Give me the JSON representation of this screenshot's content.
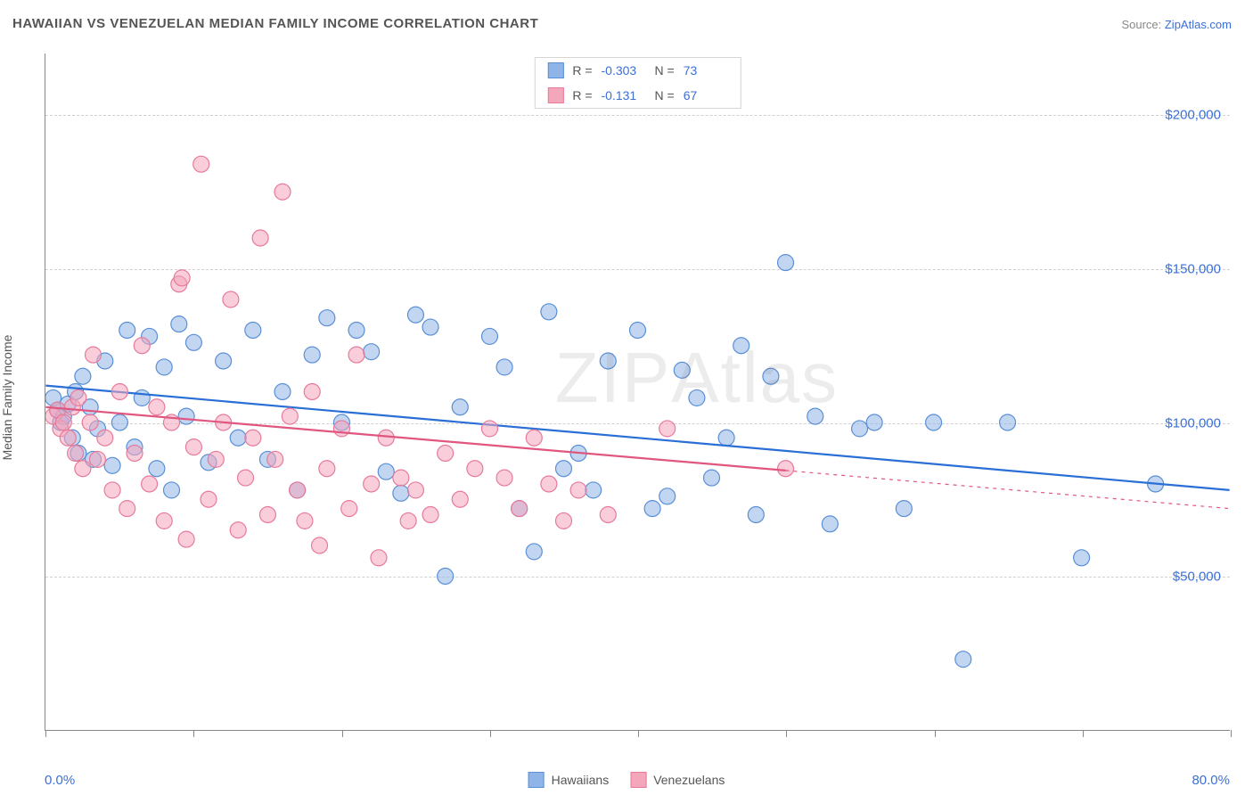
{
  "title": "HAWAIIAN VS VENEZUELAN MEDIAN FAMILY INCOME CORRELATION CHART",
  "source_prefix": "Source: ",
  "source_name": "ZipAtlas.com",
  "watermark_bold": "ZIP",
  "watermark_thin": "Atlas",
  "y_axis_label": "Median Family Income",
  "chart": {
    "type": "scatter",
    "background_color": "#ffffff",
    "grid_color": "#d0d0d0",
    "axis_color": "#888888",
    "xlim": [
      0,
      80
    ],
    "ylim": [
      0,
      220000
    ],
    "y_gridlines": [
      50000,
      100000,
      150000,
      200000
    ],
    "y_tick_labels": [
      "$50,000",
      "$100,000",
      "$150,000",
      "$200,000"
    ],
    "x_ticks": [
      0,
      10,
      20,
      30,
      40,
      50,
      60,
      70,
      80
    ],
    "x_min_label": "0.0%",
    "x_max_label": "80.0%",
    "tick_label_color": "#3b6fd6",
    "axis_label_color": "#555555",
    "title_fontsize": 15,
    "label_fontsize": 14,
    "marker_radius": 9,
    "marker_opacity": 0.55,
    "line_width": 2.2
  },
  "series": [
    {
      "name": "Hawaiians",
      "color_fill": "#8fb5e8",
      "color_stroke": "#5a8fd6",
      "line_color": "#2a6fd6",
      "R": "-0.303",
      "N": "73",
      "trend": {
        "x1": 0,
        "y1": 112000,
        "x2": 80,
        "y2": 78000,
        "dash_start_x": null
      },
      "points": [
        [
          0.5,
          108000
        ],
        [
          0.8,
          104000
        ],
        [
          1.0,
          100000
        ],
        [
          1.2,
          102000
        ],
        [
          1.5,
          106000
        ],
        [
          1.8,
          95000
        ],
        [
          2.0,
          110000
        ],
        [
          2.2,
          90000
        ],
        [
          2.5,
          115000
        ],
        [
          3.0,
          105000
        ],
        [
          3.2,
          88000
        ],
        [
          3.5,
          98000
        ],
        [
          4.0,
          120000
        ],
        [
          4.5,
          86000
        ],
        [
          5.0,
          100000
        ],
        [
          5.5,
          130000
        ],
        [
          6.0,
          92000
        ],
        [
          6.5,
          108000
        ],
        [
          7.0,
          128000
        ],
        [
          7.5,
          85000
        ],
        [
          8.0,
          118000
        ],
        [
          8.5,
          78000
        ],
        [
          9.0,
          132000
        ],
        [
          9.5,
          102000
        ],
        [
          10.0,
          126000
        ],
        [
          11.0,
          87000
        ],
        [
          12.0,
          120000
        ],
        [
          13.0,
          95000
        ],
        [
          14.0,
          130000
        ],
        [
          15.0,
          88000
        ],
        [
          16.0,
          110000
        ],
        [
          17.0,
          78000
        ],
        [
          18.0,
          122000
        ],
        [
          19.0,
          134000
        ],
        [
          20.0,
          100000
        ],
        [
          21.0,
          130000
        ],
        [
          22.0,
          123000
        ],
        [
          23.0,
          84000
        ],
        [
          24.0,
          77000
        ],
        [
          25.0,
          135000
        ],
        [
          26.0,
          131000
        ],
        [
          27.0,
          50000
        ],
        [
          28.0,
          105000
        ],
        [
          30.0,
          128000
        ],
        [
          31.0,
          118000
        ],
        [
          32.0,
          72000
        ],
        [
          33.0,
          58000
        ],
        [
          34.0,
          136000
        ],
        [
          35.0,
          85000
        ],
        [
          36.0,
          90000
        ],
        [
          37.0,
          78000
        ],
        [
          38.0,
          120000
        ],
        [
          40.0,
          130000
        ],
        [
          41.0,
          72000
        ],
        [
          42.0,
          76000
        ],
        [
          43.0,
          117000
        ],
        [
          44.0,
          108000
        ],
        [
          45.0,
          82000
        ],
        [
          46.0,
          95000
        ],
        [
          47.0,
          125000
        ],
        [
          48.0,
          70000
        ],
        [
          49.0,
          115000
        ],
        [
          50.0,
          152000
        ],
        [
          52.0,
          102000
        ],
        [
          53.0,
          67000
        ],
        [
          55.0,
          98000
        ],
        [
          56.0,
          100000
        ],
        [
          58.0,
          72000
        ],
        [
          60.0,
          100000
        ],
        [
          62.0,
          23000
        ],
        [
          65.0,
          100000
        ],
        [
          70.0,
          56000
        ],
        [
          75.0,
          80000
        ]
      ]
    },
    {
      "name": "Venezuelans",
      "color_fill": "#f4a6bb",
      "color_stroke": "#e77a9a",
      "line_color": "#e0567f",
      "R": "-0.131",
      "N": "67",
      "trend": {
        "x1": 0,
        "y1": 105000,
        "x2": 80,
        "y2": 72000,
        "dash_start_x": 50
      },
      "points": [
        [
          0.5,
          102000
        ],
        [
          0.8,
          104000
        ],
        [
          1.0,
          98000
        ],
        [
          1.2,
          100000
        ],
        [
          1.5,
          95000
        ],
        [
          1.8,
          105000
        ],
        [
          2.0,
          90000
        ],
        [
          2.2,
          108000
        ],
        [
          2.5,
          85000
        ],
        [
          3.0,
          100000
        ],
        [
          3.2,
          122000
        ],
        [
          3.5,
          88000
        ],
        [
          4.0,
          95000
        ],
        [
          4.5,
          78000
        ],
        [
          5.0,
          110000
        ],
        [
          5.5,
          72000
        ],
        [
          6.0,
          90000
        ],
        [
          6.5,
          125000
        ],
        [
          7.0,
          80000
        ],
        [
          7.5,
          105000
        ],
        [
          8.0,
          68000
        ],
        [
          8.5,
          100000
        ],
        [
          9.0,
          145000
        ],
        [
          9.2,
          147000
        ],
        [
          9.5,
          62000
        ],
        [
          10.0,
          92000
        ],
        [
          10.5,
          184000
        ],
        [
          11.0,
          75000
        ],
        [
          11.5,
          88000
        ],
        [
          12.0,
          100000
        ],
        [
          12.5,
          140000
        ],
        [
          13.0,
          65000
        ],
        [
          13.5,
          82000
        ],
        [
          14.0,
          95000
        ],
        [
          14.5,
          160000
        ],
        [
          15.0,
          70000
        ],
        [
          15.5,
          88000
        ],
        [
          16.0,
          175000
        ],
        [
          16.5,
          102000
        ],
        [
          17.0,
          78000
        ],
        [
          17.5,
          68000
        ],
        [
          18.0,
          110000
        ],
        [
          18.5,
          60000
        ],
        [
          19.0,
          85000
        ],
        [
          20.0,
          98000
        ],
        [
          20.5,
          72000
        ],
        [
          21.0,
          122000
        ],
        [
          22.0,
          80000
        ],
        [
          22.5,
          56000
        ],
        [
          23.0,
          95000
        ],
        [
          24.0,
          82000
        ],
        [
          24.5,
          68000
        ],
        [
          25.0,
          78000
        ],
        [
          26.0,
          70000
        ],
        [
          27.0,
          90000
        ],
        [
          28.0,
          75000
        ],
        [
          29.0,
          85000
        ],
        [
          30.0,
          98000
        ],
        [
          31.0,
          82000
        ],
        [
          32.0,
          72000
        ],
        [
          33.0,
          95000
        ],
        [
          34.0,
          80000
        ],
        [
          35.0,
          68000
        ],
        [
          36.0,
          78000
        ],
        [
          38.0,
          70000
        ],
        [
          42.0,
          98000
        ],
        [
          50.0,
          85000
        ]
      ]
    }
  ],
  "stat_box": {
    "r_label": "R =",
    "n_label": "N ="
  },
  "legend_label_color": "#555555"
}
